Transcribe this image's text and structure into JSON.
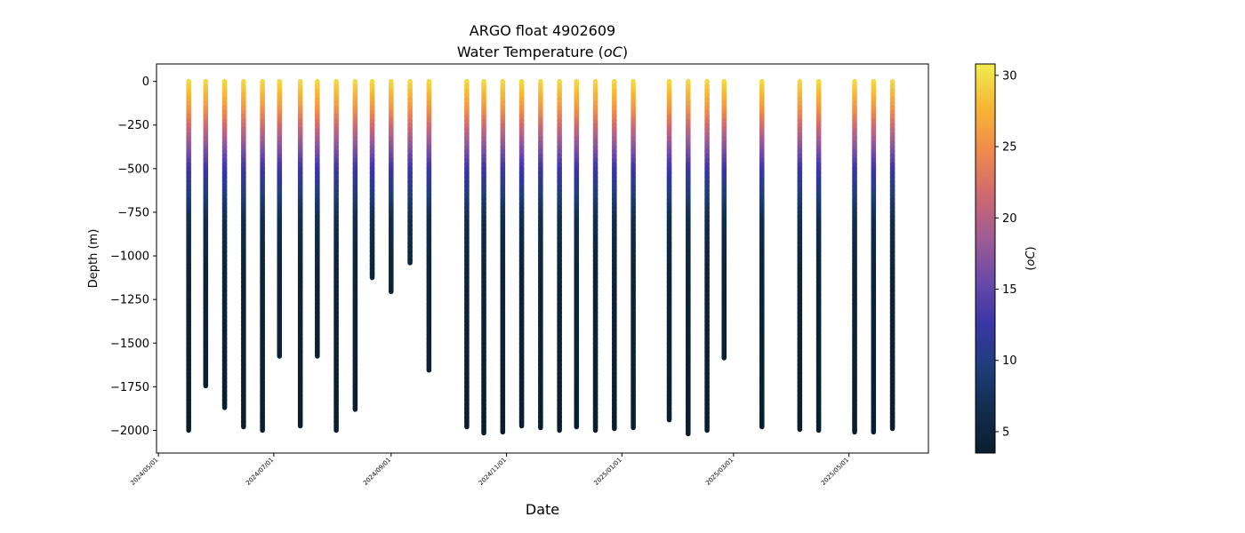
{
  "chart_data": {
    "type": "scatter",
    "title": "ARGO float 4902609",
    "subtitle": "Water Temperature (",
    "subtitle_unit": "oC",
    "subtitle_close": ")",
    "xlabel": "Date",
    "ylabel": "Depth (m)",
    "colorbar_label": "(",
    "colorbar_unit": "oC",
    "colorbar_close": ")",
    "ylim": [
      -2130,
      100
    ],
    "yticks": [
      0,
      -250,
      -500,
      -750,
      -1000,
      -1250,
      -1500,
      -1750,
      -2000
    ],
    "xlim": [
      "2024-04-30",
      "2025-06-12"
    ],
    "xticks": [
      "2024/05/01",
      "2024/07/01",
      "2024/09/01",
      "2024/11/01",
      "2025/01/01",
      "2025/03/01",
      "2025/05/01"
    ],
    "colorbar_range": [
      3.5,
      30.8
    ],
    "colorbar_ticks": [
      5,
      10,
      15,
      20,
      25,
      30
    ],
    "colormap": [
      "#0b1e2e",
      "#112d4e",
      "#1f3d7a",
      "#3a35a6",
      "#6c4aa8",
      "#a05c93",
      "#d06a6e",
      "#f08a4b",
      "#f7b635",
      "#f1ec4e"
    ],
    "profiles": [
      {
        "date": "2024-05-17",
        "max_depth": -2000
      },
      {
        "date": "2024-05-26",
        "max_depth": -1745
      },
      {
        "date": "2024-06-05",
        "max_depth": -1870
      },
      {
        "date": "2024-06-15",
        "max_depth": -1980
      },
      {
        "date": "2024-06-25",
        "max_depth": -2000
      },
      {
        "date": "2024-07-04",
        "max_depth": -1575
      },
      {
        "date": "2024-07-15",
        "max_depth": -1975
      },
      {
        "date": "2024-07-24",
        "max_depth": -1575
      },
      {
        "date": "2024-08-03",
        "max_depth": -2000
      },
      {
        "date": "2024-08-13",
        "max_depth": -1880
      },
      {
        "date": "2024-08-22",
        "max_depth": -1125
      },
      {
        "date": "2024-09-01",
        "max_depth": -1205
      },
      {
        "date": "2024-09-11",
        "max_depth": -1040
      },
      {
        "date": "2024-09-21",
        "max_depth": -1655
      },
      {
        "date": "2024-10-11",
        "max_depth": -1980
      },
      {
        "date": "2024-10-20",
        "max_depth": -2015
      },
      {
        "date": "2024-10-30",
        "max_depth": -2010
      },
      {
        "date": "2024-11-09",
        "max_depth": -1975
      },
      {
        "date": "2024-11-19",
        "max_depth": -1985
      },
      {
        "date": "2024-11-29",
        "max_depth": -2000
      },
      {
        "date": "2024-12-08",
        "max_depth": -1980
      },
      {
        "date": "2024-12-18",
        "max_depth": -2000
      },
      {
        "date": "2024-12-28",
        "max_depth": -1990
      },
      {
        "date": "2025-01-07",
        "max_depth": -1985
      },
      {
        "date": "2025-01-26",
        "max_depth": -1940
      },
      {
        "date": "2025-02-05",
        "max_depth": -2020
      },
      {
        "date": "2025-02-15",
        "max_depth": -2000
      },
      {
        "date": "2025-02-24",
        "max_depth": -1585
      },
      {
        "date": "2025-03-16",
        "max_depth": -1980
      },
      {
        "date": "2025-04-05",
        "max_depth": -1995
      },
      {
        "date": "2025-04-15",
        "max_depth": -2000
      },
      {
        "date": "2025-05-04",
        "max_depth": -2010
      },
      {
        "date": "2025-05-14",
        "max_depth": -2010
      },
      {
        "date": "2025-05-24",
        "max_depth": -1990
      }
    ]
  }
}
